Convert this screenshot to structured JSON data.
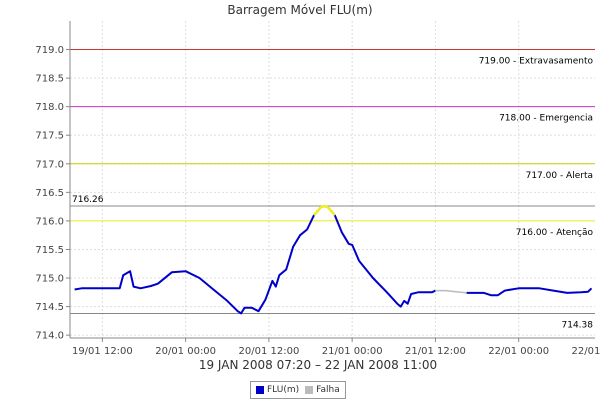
{
  "chart_data": {
    "type": "line",
    "title": "Barragem Móvel FLU(m)",
    "x_range_label": "19 JAN 2008 07:20 – 22 JAN 2008 11:00",
    "x_domain": [
      "2008-01-19 07:20",
      "2008-01-22 11:00"
    ],
    "ylim": [
      713.95,
      719.5
    ],
    "y_ticks": [
      "714.0",
      "714.5",
      "715.0",
      "715.5",
      "716.0",
      "716.5",
      "717.0",
      "717.5",
      "718.0",
      "718.5",
      "719.0"
    ],
    "x_ticks": [
      {
        "t": "2008-01-19 12:00",
        "label": "19/01 12:00"
      },
      {
        "t": "2008-01-20 00:00",
        "label": "20/01 00:00"
      },
      {
        "t": "2008-01-20 12:00",
        "label": "20/01 12:00"
      },
      {
        "t": "2008-01-21 00:00",
        "label": "21/01 00:00"
      },
      {
        "t": "2008-01-21 12:00",
        "label": "21/01 12:00"
      },
      {
        "t": "2008-01-22 00:00",
        "label": "22/01 00:00"
      },
      {
        "t": "2008-01-22 12:00",
        "label": "22/01 12:00"
      }
    ],
    "grid": true,
    "legend_position": "bottom",
    "thresholds": [
      {
        "value": 719.0,
        "label": "719.00 - Extravasamento",
        "color": "#cc3333"
      },
      {
        "value": 718.0,
        "label": "718.00 - Emergencia",
        "color": "#cc33cc"
      },
      {
        "value": 717.0,
        "label": "717.00 - Alerta",
        "color": "#cccc00"
      },
      {
        "value": 716.0,
        "label": "716.00 - Atenção",
        "color": "#eeee22"
      }
    ],
    "max_line": {
      "value": 716.26,
      "label": "716.26",
      "color": "#888888"
    },
    "min_line": {
      "value": 714.38,
      "label": "714.38",
      "color": "#888888"
    },
    "series": [
      {
        "name": "FLU(m)",
        "color": "#0000cc",
        "highlight_color": "#eeee22",
        "highlight_above": 716.0,
        "segments": [
          [
            [
              "2008-01-19 08:00",
              714.8
            ],
            [
              "2008-01-19 09:00",
              714.82
            ],
            [
              "2008-01-19 13:00",
              714.82
            ],
            [
              "2008-01-19 14:30",
              714.82
            ],
            [
              "2008-01-19 15:00",
              715.05
            ],
            [
              "2008-01-19 16:00",
              715.12
            ],
            [
              "2008-01-19 16:30",
              714.85
            ],
            [
              "2008-01-19 17:30",
              714.82
            ],
            [
              "2008-01-19 19:00",
              714.86
            ],
            [
              "2008-01-19 20:00",
              714.9
            ],
            [
              "2008-01-19 22:00",
              715.1
            ],
            [
              "2008-01-20 00:00",
              715.12
            ],
            [
              "2008-01-20 02:00",
              715.0
            ],
            [
              "2008-01-20 04:00",
              714.8
            ],
            [
              "2008-01-20 06:00",
              714.6
            ],
            [
              "2008-01-20 07:30",
              714.42
            ],
            [
              "2008-01-20 08:00",
              714.38
            ],
            [
              "2008-01-20 08:30",
              714.48
            ],
            [
              "2008-01-20 09:30",
              714.48
            ],
            [
              "2008-01-20 10:30",
              714.42
            ],
            [
              "2008-01-20 11:30",
              714.62
            ],
            [
              "2008-01-20 12:30",
              714.95
            ],
            [
              "2008-01-20 13:00",
              714.85
            ],
            [
              "2008-01-20 13:30",
              715.05
            ],
            [
              "2008-01-20 14:30",
              715.15
            ],
            [
              "2008-01-20 15:30",
              715.55
            ],
            [
              "2008-01-20 16:30",
              715.75
            ],
            [
              "2008-01-20 17:30",
              715.85
            ],
            [
              "2008-01-20 18:30",
              716.1
            ],
            [
              "2008-01-20 19:30",
              716.24
            ],
            [
              "2008-01-20 20:00",
              716.26
            ],
            [
              "2008-01-20 20:30",
              716.24
            ],
            [
              "2008-01-20 21:30",
              716.1
            ],
            [
              "2008-01-20 22:30",
              715.8
            ],
            [
              "2008-01-20 23:30",
              715.6
            ],
            [
              "2008-01-21 00:00",
              715.58
            ],
            [
              "2008-01-21 01:00",
              715.3
            ],
            [
              "2008-01-21 03:00",
              715.0
            ],
            [
              "2008-01-21 05:00",
              714.75
            ],
            [
              "2008-01-21 06:30",
              714.55
            ],
            [
              "2008-01-21 07:00",
              714.5
            ],
            [
              "2008-01-21 07:30",
              714.6
            ],
            [
              "2008-01-21 08:00",
              714.55
            ],
            [
              "2008-01-21 08:30",
              714.72
            ],
            [
              "2008-01-21 09:30",
              714.75
            ],
            [
              "2008-01-21 11:30",
              714.75
            ],
            [
              "2008-01-21 12:00",
              714.78
            ]
          ],
          [
            [
              "2008-01-21 16:30",
              714.74
            ],
            [
              "2008-01-21 19:00",
              714.74
            ],
            [
              "2008-01-21 20:00",
              714.7
            ],
            [
              "2008-01-21 21:00",
              714.7
            ],
            [
              "2008-01-21 22:00",
              714.78
            ],
            [
              "2008-01-22 00:00",
              714.82
            ],
            [
              "2008-01-22 03:00",
              714.82
            ],
            [
              "2008-01-22 05:00",
              714.78
            ],
            [
              "2008-01-22 07:00",
              714.74
            ],
            [
              "2008-01-22 09:00",
              714.75
            ],
            [
              "2008-01-22 10:00",
              714.76
            ],
            [
              "2008-01-22 10:30",
              714.82
            ]
          ]
        ]
      },
      {
        "name": "Falha",
        "color": "#bbbbbb",
        "segments": [
          [
            [
              "2008-01-21 12:00",
              714.78
            ],
            [
              "2008-01-21 13:30",
              714.78
            ],
            [
              "2008-01-21 16:30",
              714.74
            ]
          ]
        ]
      }
    ]
  }
}
